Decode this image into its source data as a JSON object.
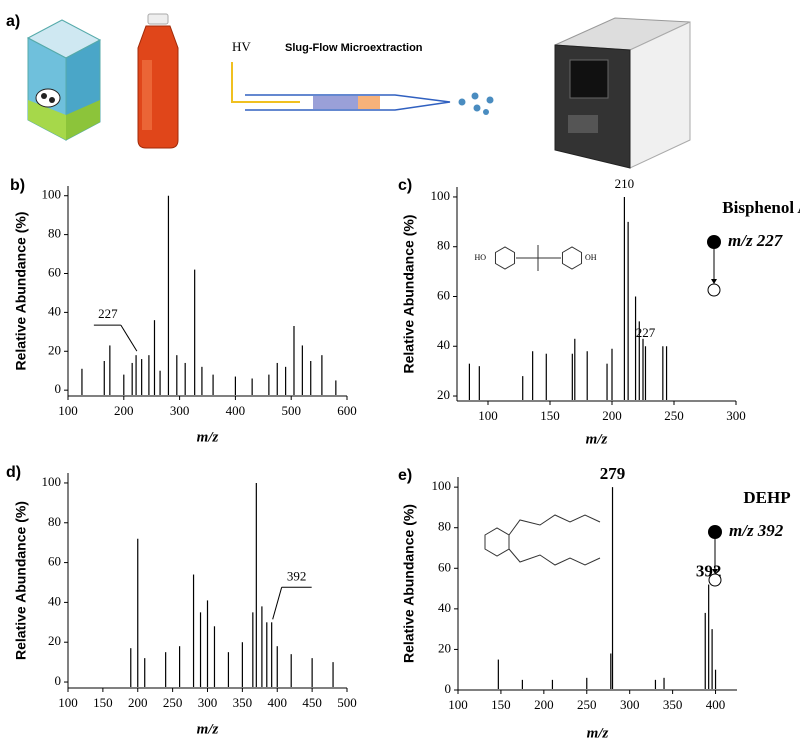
{
  "figure": {
    "panel_a": {
      "label": "a)",
      "hv": "HV",
      "title": "Slug-Flow Microextraction"
    }
  },
  "chart_data": [
    {
      "type": "stem",
      "panel": "b)",
      "ylabel": "Relative Abundance (%)",
      "xlabel": "m/z",
      "color": "#000000",
      "x": [
        125,
        165,
        175,
        200,
        215,
        222,
        232,
        245,
        255,
        265,
        280,
        295,
        310,
        327,
        340,
        360,
        400,
        430,
        460,
        475,
        490,
        505,
        520,
        535,
        555,
        580
      ],
      "values": [
        11,
        15,
        23,
        8,
        14,
        18,
        16,
        18,
        36,
        10,
        100,
        18,
        14,
        62,
        12,
        8,
        7,
        6,
        8,
        14,
        12,
        33,
        23,
        15,
        18,
        5
      ],
      "xlim": [
        100,
        600
      ],
      "xticks": [
        100,
        200,
        300,
        400,
        500,
        600
      ],
      "ylim": [
        -3,
        105
      ],
      "yticks": [
        0,
        20,
        40,
        60,
        80,
        100
      ],
      "annotations": [
        {
          "text": "227",
          "x": 227,
          "leader": "left"
        }
      ]
    },
    {
      "type": "stem",
      "panel": "c)",
      "ylabel": "Relative Abundance (%)",
      "xlabel": "m/z",
      "color": "#000000",
      "x": [
        85,
        93,
        128,
        136,
        147,
        168,
        170,
        180,
        196,
        200,
        210,
        213,
        219,
        222,
        225,
        227,
        241,
        244
      ],
      "values": [
        33,
        32,
        28,
        38,
        37,
        37,
        43,
        38,
        33,
        39,
        100,
        90,
        60,
        50,
        43,
        40,
        40,
        40
      ],
      "xlim": [
        75,
        300
      ],
      "xticks": [
        100,
        150,
        200,
        250,
        300
      ],
      "ylim": [
        18,
        104
      ],
      "yticks": [
        20,
        40,
        60,
        80,
        100
      ],
      "annotations": [
        {
          "text": "210",
          "x": 210
        },
        {
          "text": "227",
          "x": 227
        }
      ],
      "compound": "Bisphenol A",
      "precursor": "m/z 227",
      "structure_labels": [
        "HO",
        "OH"
      ]
    },
    {
      "type": "stem",
      "panel": "d)",
      "ylabel": "Relative Abundance (%)",
      "xlabel": "m/z",
      "color": "#000000",
      "x": [
        190,
        200,
        210,
        240,
        260,
        280,
        290,
        300,
        310,
        330,
        350,
        365,
        370,
        378,
        385,
        392,
        400,
        420,
        450,
        480
      ],
      "values": [
        17,
        72,
        12,
        15,
        18,
        54,
        35,
        41,
        28,
        15,
        20,
        35,
        100,
        38,
        30,
        30,
        18,
        14,
        12,
        10
      ],
      "xlim": [
        100,
        500
      ],
      "xticks": [
        100,
        150,
        200,
        250,
        300,
        350,
        400,
        450,
        500
      ],
      "ylim": [
        -3,
        105
      ],
      "yticks": [
        0,
        20,
        40,
        60,
        80,
        100
      ],
      "annotations": [
        {
          "text": "392",
          "x": 392,
          "leader": "right"
        }
      ]
    },
    {
      "type": "stem",
      "panel": "e)",
      "ylabel": "Relative Abundance (%)",
      "xlabel": "m/z",
      "color": "#000000",
      "x": [
        147,
        175,
        210,
        250,
        278,
        280,
        330,
        340,
        388,
        392,
        396,
        400
      ],
      "values": [
        15,
        5,
        5,
        6,
        18,
        100,
        5,
        6,
        38,
        52,
        30,
        10
      ],
      "xlim": [
        100,
        425
      ],
      "xticks": [
        100,
        150,
        200,
        250,
        300,
        350,
        400
      ],
      "ylim": [
        0,
        105
      ],
      "yticks": [
        0,
        20,
        40,
        60,
        80,
        100
      ],
      "annotations": [
        {
          "text": "279",
          "x": 280,
          "big": true
        },
        {
          "text": "392",
          "x": 392,
          "big": true
        }
      ],
      "compound": "DEHP",
      "precursor": "m/z 392"
    }
  ]
}
